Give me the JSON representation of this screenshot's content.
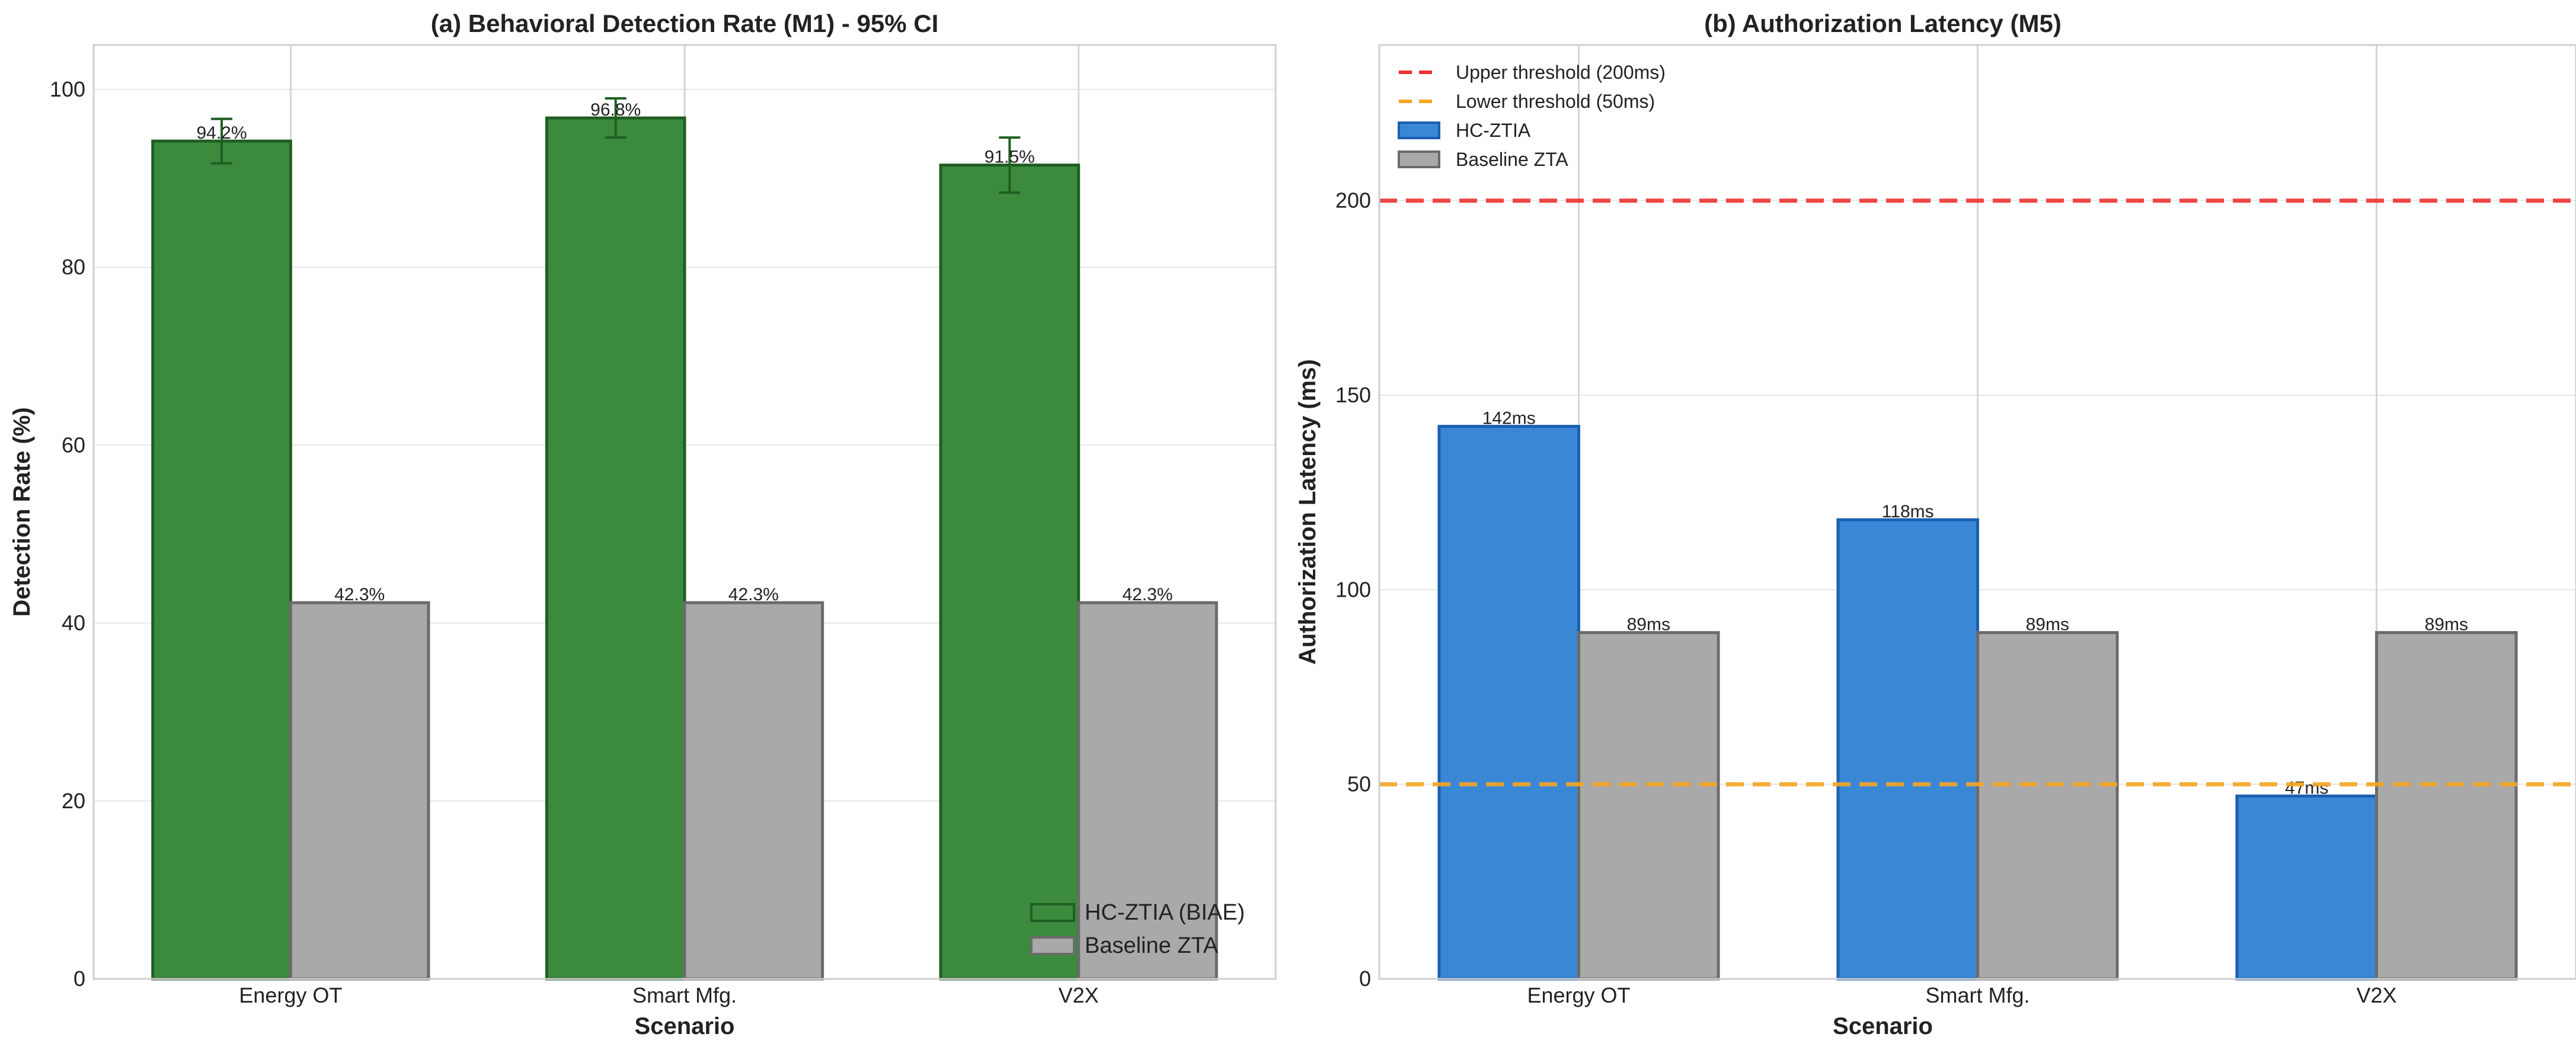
{
  "chart_data": [
    {
      "type": "bar",
      "title": "(a) Behavioral Detection Rate (M1) - 95% CI",
      "xlabel": "Scenario",
      "ylabel": "Detection Rate (%)",
      "categories": [
        "Energy OT",
        "Smart Mfg.",
        "V2X"
      ],
      "ylim": [
        0,
        105
      ],
      "yticks": [
        0,
        20,
        40,
        60,
        80,
        100
      ],
      "grid": true,
      "legend_position": "lower-right",
      "series": [
        {
          "name": "HC-ZTIA (BIAE)",
          "values": [
            94.2,
            96.8,
            91.5
          ],
          "labels": [
            "94.2%",
            "96.8%",
            "91.5%"
          ],
          "error": [
            2.5,
            2.2,
            3.1
          ],
          "color": "#3b8a3e",
          "edge": "#1f5e22"
        },
        {
          "name": "Baseline ZTA",
          "values": [
            42.3,
            42.3,
            42.3
          ],
          "labels": [
            "42.3%",
            "42.3%",
            "42.3%"
          ],
          "color": "#a9a9a9",
          "edge": "#6b6b6b"
        }
      ]
    },
    {
      "type": "bar",
      "title": "(b) Authorization Latency (M5)",
      "xlabel": "Scenario",
      "ylabel": "Authorization Latency (ms)",
      "categories": [
        "Energy OT",
        "Smart Mfg.",
        "V2X"
      ],
      "ylim": [
        0,
        240
      ],
      "yticks": [
        0,
        50,
        100,
        150,
        200
      ],
      "grid": true,
      "legend_position": "upper-left",
      "thresholds": [
        {
          "name": "Upper threshold (200ms)",
          "value": 200,
          "color": "#ee3333"
        },
        {
          "name": "Lower threshold (50ms)",
          "value": 50,
          "color": "#f5a623"
        }
      ],
      "series": [
        {
          "name": "HC-ZTIA",
          "values": [
            142,
            118,
            47
          ],
          "labels": [
            "142ms",
            "118ms",
            "47ms"
          ],
          "color": "#3a87d6",
          "edge": "#1c5fb0"
        },
        {
          "name": "Baseline ZTA",
          "values": [
            89,
            89,
            89
          ],
          "labels": [
            "89ms",
            "89ms",
            "89ms"
          ],
          "color": "#a9a9a9",
          "edge": "#6b6b6b"
        }
      ]
    }
  ]
}
